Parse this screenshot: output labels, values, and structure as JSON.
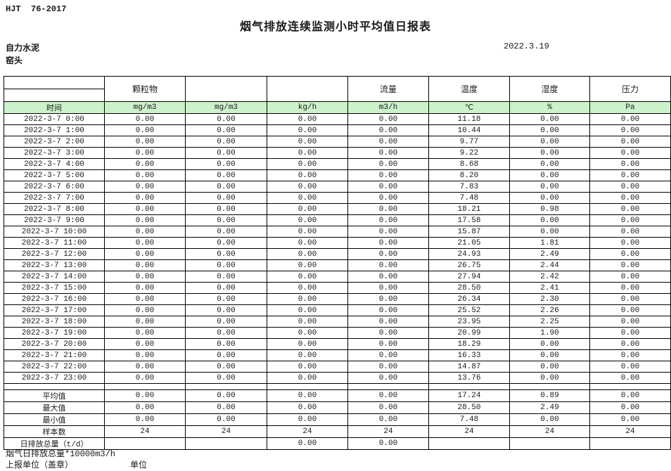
{
  "page": {
    "doc_code": "HJT  76-2017",
    "title": "烟气排放连续监测小时平均值日报表",
    "company": "自力水泥",
    "station": "窑头",
    "date": "2022.3.19"
  },
  "table": {
    "group_headers": [
      "",
      "颗粒物",
      "",
      "",
      "流量",
      "温度",
      "湿度",
      "压力"
    ],
    "unit_headers": [
      "时间",
      "mg/m3",
      "mg/m3",
      "kg/h",
      "m3/h",
      "℃",
      "%",
      "Pa"
    ],
    "header_bg": "#ccf2cc",
    "rows": [
      [
        "2022-3-7 0:00",
        "0.00",
        "0.00",
        "0.00",
        "0.00",
        "11.18",
        "0.00",
        "0.00"
      ],
      [
        "2022-3-7 1:00",
        "0.00",
        "0.00",
        "0.00",
        "0.00",
        "10.44",
        "0.00",
        "0.00"
      ],
      [
        "2022-3-7 2:00",
        "0.00",
        "0.00",
        "0.00",
        "0.00",
        "9.77",
        "0.00",
        "0.00"
      ],
      [
        "2022-3-7 3:00",
        "0.00",
        "0.00",
        "0.00",
        "0.00",
        "9.22",
        "0.00",
        "0.00"
      ],
      [
        "2022-3-7 4:00",
        "0.00",
        "0.00",
        "0.00",
        "0.00",
        "8.68",
        "0.00",
        "0.00"
      ],
      [
        "2022-3-7 5:00",
        "0.00",
        "0.00",
        "0.00",
        "0.00",
        "8.20",
        "0.00",
        "0.00"
      ],
      [
        "2022-3-7 6:00",
        "0.00",
        "0.00",
        "0.00",
        "0.00",
        "7.83",
        "0.00",
        "0.00"
      ],
      [
        "2022-3-7 7:00",
        "0.00",
        "0.00",
        "0.00",
        "0.00",
        "7.48",
        "0.00",
        "0.00"
      ],
      [
        "2022-3-7 8:00",
        "0.00",
        "0.00",
        "0.00",
        "0.00",
        "18.21",
        "0.98",
        "0.00"
      ],
      [
        "2022-3-7 9:00",
        "0.00",
        "0.00",
        "0.00",
        "0.00",
        "17.58",
        "0.00",
        "0.00"
      ],
      [
        "2022-3-7 10:00",
        "0.00",
        "0.00",
        "0.00",
        "0.00",
        "15.87",
        "0.00",
        "0.00"
      ],
      [
        "2022-3-7 11:00",
        "0.00",
        "0.00",
        "0.00",
        "0.00",
        "21.05",
        "1.81",
        "0.00"
      ],
      [
        "2022-3-7 12:00",
        "0.00",
        "0.00",
        "0.00",
        "0.00",
        "24.93",
        "2.49",
        "0.00"
      ],
      [
        "2022-3-7 13:00",
        "0.00",
        "0.00",
        "0.00",
        "0.00",
        "26.75",
        "2.44",
        "0.00"
      ],
      [
        "2022-3-7 14:00",
        "0.00",
        "0.00",
        "0.00",
        "0.00",
        "27.94",
        "2.42",
        "0.00"
      ],
      [
        "2022-3-7 15:00",
        "0.00",
        "0.00",
        "0.00",
        "0.00",
        "28.50",
        "2.41",
        "0.00"
      ],
      [
        "2022-3-7 16:00",
        "0.00",
        "0.00",
        "0.00",
        "0.00",
        "26.34",
        "2.30",
        "0.00"
      ],
      [
        "2022-3-7 17:00",
        "0.00",
        "0.00",
        "0.00",
        "0.00",
        "25.52",
        "2.26",
        "0.00"
      ],
      [
        "2022-3-7 18:00",
        "0.00",
        "0.00",
        "0.00",
        "0.00",
        "23.95",
        "2.25",
        "0.00"
      ],
      [
        "2022-3-7 19:00",
        "0.00",
        "0.00",
        "0.00",
        "0.00",
        "20.99",
        "1.90",
        "0.00"
      ],
      [
        "2022-3-7 20:00",
        "0.00",
        "0.00",
        "0.00",
        "0.00",
        "18.29",
        "0.00",
        "0.00"
      ],
      [
        "2022-3-7 21:00",
        "0.00",
        "0.00",
        "0.00",
        "0.00",
        "16.33",
        "0.00",
        "0.00"
      ],
      [
        "2022-3-7 22:00",
        "0.00",
        "0.00",
        "0.00",
        "0.00",
        "14.87",
        "0.00",
        "0.00"
      ],
      [
        "2022-3-7 23:00",
        "0.00",
        "0.00",
        "0.00",
        "0.00",
        "13.76",
        "0.00",
        "0.00"
      ]
    ],
    "summary_rows": [
      [
        "平均值",
        "0.00",
        "0.00",
        "0.00",
        "0.00",
        "17.24",
        "0.89",
        "0.00"
      ],
      [
        "最大值",
        "0.00",
        "0.00",
        "0.00",
        "0.00",
        "28.50",
        "2.49",
        "0.00"
      ],
      [
        "最小值",
        "0.00",
        "0.00",
        "0.00",
        "0.00",
        "7.48",
        "0.00",
        "0.00"
      ],
      [
        "样本数",
        "24",
        "24",
        "24",
        "24",
        "24",
        "24",
        "24"
      ],
      [
        "日排放总量（t/d）",
        "",
        "",
        "0.00",
        "0.00",
        "",
        "",
        ""
      ]
    ]
  },
  "footer": {
    "note": "烟气日排放总量*10000m3/h",
    "report_unit_label": "上报单位（盖章）",
    "unit_label": "单位"
  }
}
